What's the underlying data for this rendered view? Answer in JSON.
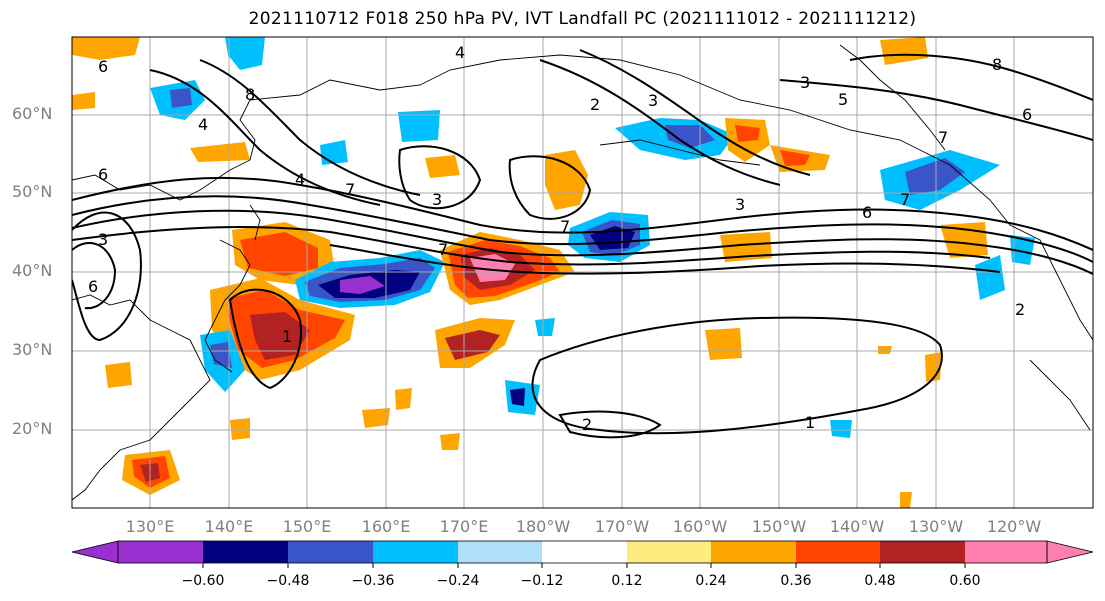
{
  "title": "2021110712 F018 250 hPa PV, IVT Landfall PC (2021111012 - 2021111212)",
  "lat_labels": [
    "60°N",
    "50°N",
    "40°N",
    "30°N",
    "20°N"
  ],
  "lon_labels": [
    "130°E",
    "140°E",
    "150°E",
    "160°E",
    "170°E",
    "180°W",
    "170°W",
    "160°W",
    "150°W",
    "140°W",
    "130°W",
    "120°W"
  ],
  "colorbar": {
    "ticks": [
      "−0.60",
      "−0.48",
      "−0.36",
      "−0.24",
      "−0.12",
      "0.12",
      "0.24",
      "0.36",
      "0.48",
      "0.60"
    ],
    "colors": [
      "#9b30d0",
      "#000080",
      "#3a55c8",
      "#00bfff",
      "#b0e0f8",
      "#ffffff",
      "#ffec80",
      "#ffa500",
      "#ff4500",
      "#b22222",
      "#ff80b0"
    ]
  },
  "contour_labels": [
    "1",
    "2",
    "3",
    "4",
    "5",
    "6",
    "7",
    "8"
  ],
  "colors": {
    "grid": "#a8a8a8",
    "contour": "#000000",
    "coast": "#000000"
  }
}
